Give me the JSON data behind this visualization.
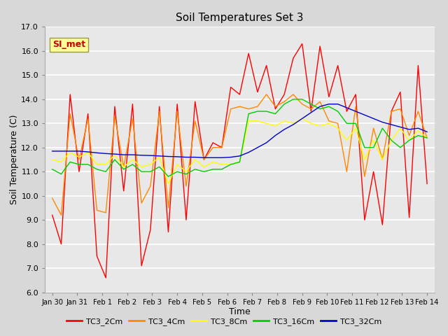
{
  "title": "Soil Temperatures Set 3",
  "xlabel": "Time",
  "ylabel": "Soil Temperature (C)",
  "ylim": [
    6.0,
    17.0
  ],
  "yticks": [
    6.0,
    7.0,
    8.0,
    9.0,
    10.0,
    11.0,
    12.0,
    13.0,
    14.0,
    15.0,
    16.0,
    17.0
  ],
  "xtick_labels": [
    "Jan 30",
    "Jan 31",
    "Feb 1",
    "Feb 2",
    "Feb 3",
    "Feb 4",
    "Feb 5",
    "Feb 6",
    "Feb 7",
    "Feb 8",
    "Feb 9",
    "Feb 10",
    "Feb 11",
    "Feb 12",
    "Feb 13",
    "Feb 14"
  ],
  "bg_color": "#d8d8d8",
  "plot_bg_color": "#e8e8e8",
  "grid_color": "#ffffff",
  "annotation_text": "SI_met",
  "annotation_color": "#cc0000",
  "annotation_bg": "#ffff99",
  "series": {
    "TC3_2Cm": {
      "color": "#ff0000",
      "values": [
        9.2,
        8.0,
        14.2,
        11.0,
        13.4,
        7.5,
        6.6,
        13.7,
        10.2,
        13.8,
        7.1,
        8.6,
        13.7,
        8.5,
        13.8,
        9.0,
        13.9,
        11.5,
        12.2,
        12.0,
        14.5,
        14.2,
        15.9,
        14.3,
        15.4,
        13.6,
        14.2,
        15.7,
        16.3,
        13.5,
        16.2,
        14.1,
        15.4,
        13.5,
        14.2,
        9.0,
        11.0,
        8.8,
        13.5,
        14.3,
        9.1,
        15.4,
        10.5
      ]
    },
    "TC3_4Cm": {
      "color": "#ff8800",
      "values": [
        9.9,
        9.2,
        13.4,
        11.5,
        13.2,
        9.4,
        9.3,
        13.3,
        11.2,
        13.2,
        9.7,
        10.4,
        13.5,
        9.5,
        13.5,
        10.4,
        13.1,
        11.5,
        12.0,
        12.0,
        13.6,
        13.7,
        13.6,
        13.7,
        14.2,
        13.7,
        13.9,
        14.2,
        13.8,
        13.6,
        13.9,
        13.1,
        13.0,
        11.0,
        13.7,
        10.8,
        12.8,
        11.5,
        13.5,
        13.6,
        12.5,
        13.5,
        12.4
      ]
    },
    "TC3_8Cm": {
      "color": "#ffff00",
      "values": [
        11.5,
        11.4,
        11.8,
        11.6,
        11.8,
        11.3,
        11.3,
        11.7,
        11.2,
        11.5,
        11.2,
        11.3,
        11.6,
        10.5,
        11.3,
        11.0,
        11.5,
        11.2,
        11.4,
        11.3,
        11.3,
        11.4,
        13.1,
        13.1,
        13.0,
        12.9,
        13.1,
        13.0,
        13.2,
        13.0,
        12.9,
        13.0,
        12.8,
        12.3,
        12.8,
        11.5,
        12.3,
        11.5,
        12.3,
        12.8,
        12.3,
        12.7,
        12.4
      ]
    },
    "TC3_16Cm": {
      "color": "#00cc00",
      "values": [
        11.1,
        10.9,
        11.4,
        11.3,
        11.3,
        11.1,
        11.0,
        11.5,
        11.1,
        11.3,
        11.0,
        11.0,
        11.2,
        10.8,
        11.0,
        10.9,
        11.1,
        11.0,
        11.1,
        11.1,
        11.3,
        11.4,
        13.4,
        13.5,
        13.5,
        13.4,
        13.8,
        14.0,
        14.0,
        13.8,
        13.6,
        13.7,
        13.5,
        13.0,
        13.0,
        12.0,
        12.0,
        12.8,
        12.3,
        12.0,
        12.3,
        12.5,
        12.4
      ]
    },
    "TC3_32Cm": {
      "color": "#0000cc",
      "values": [
        11.85,
        11.85,
        11.85,
        11.85,
        11.82,
        11.78,
        11.75,
        11.73,
        11.7,
        11.7,
        11.68,
        11.67,
        11.65,
        11.63,
        11.62,
        11.6,
        11.6,
        11.58,
        11.58,
        11.58,
        11.6,
        11.65,
        11.8,
        12.0,
        12.2,
        12.5,
        12.75,
        12.95,
        13.2,
        13.45,
        13.7,
        13.8,
        13.8,
        13.65,
        13.5,
        13.35,
        13.2,
        13.05,
        12.95,
        12.85,
        12.75,
        12.8,
        12.65
      ]
    }
  },
  "legend": {
    "TC3_2Cm": "#ff0000",
    "TC3_4Cm": "#ff8800",
    "TC3_8Cm": "#ffff00",
    "TC3_16Cm": "#00cc00",
    "TC3_32Cm": "#0000cc"
  }
}
